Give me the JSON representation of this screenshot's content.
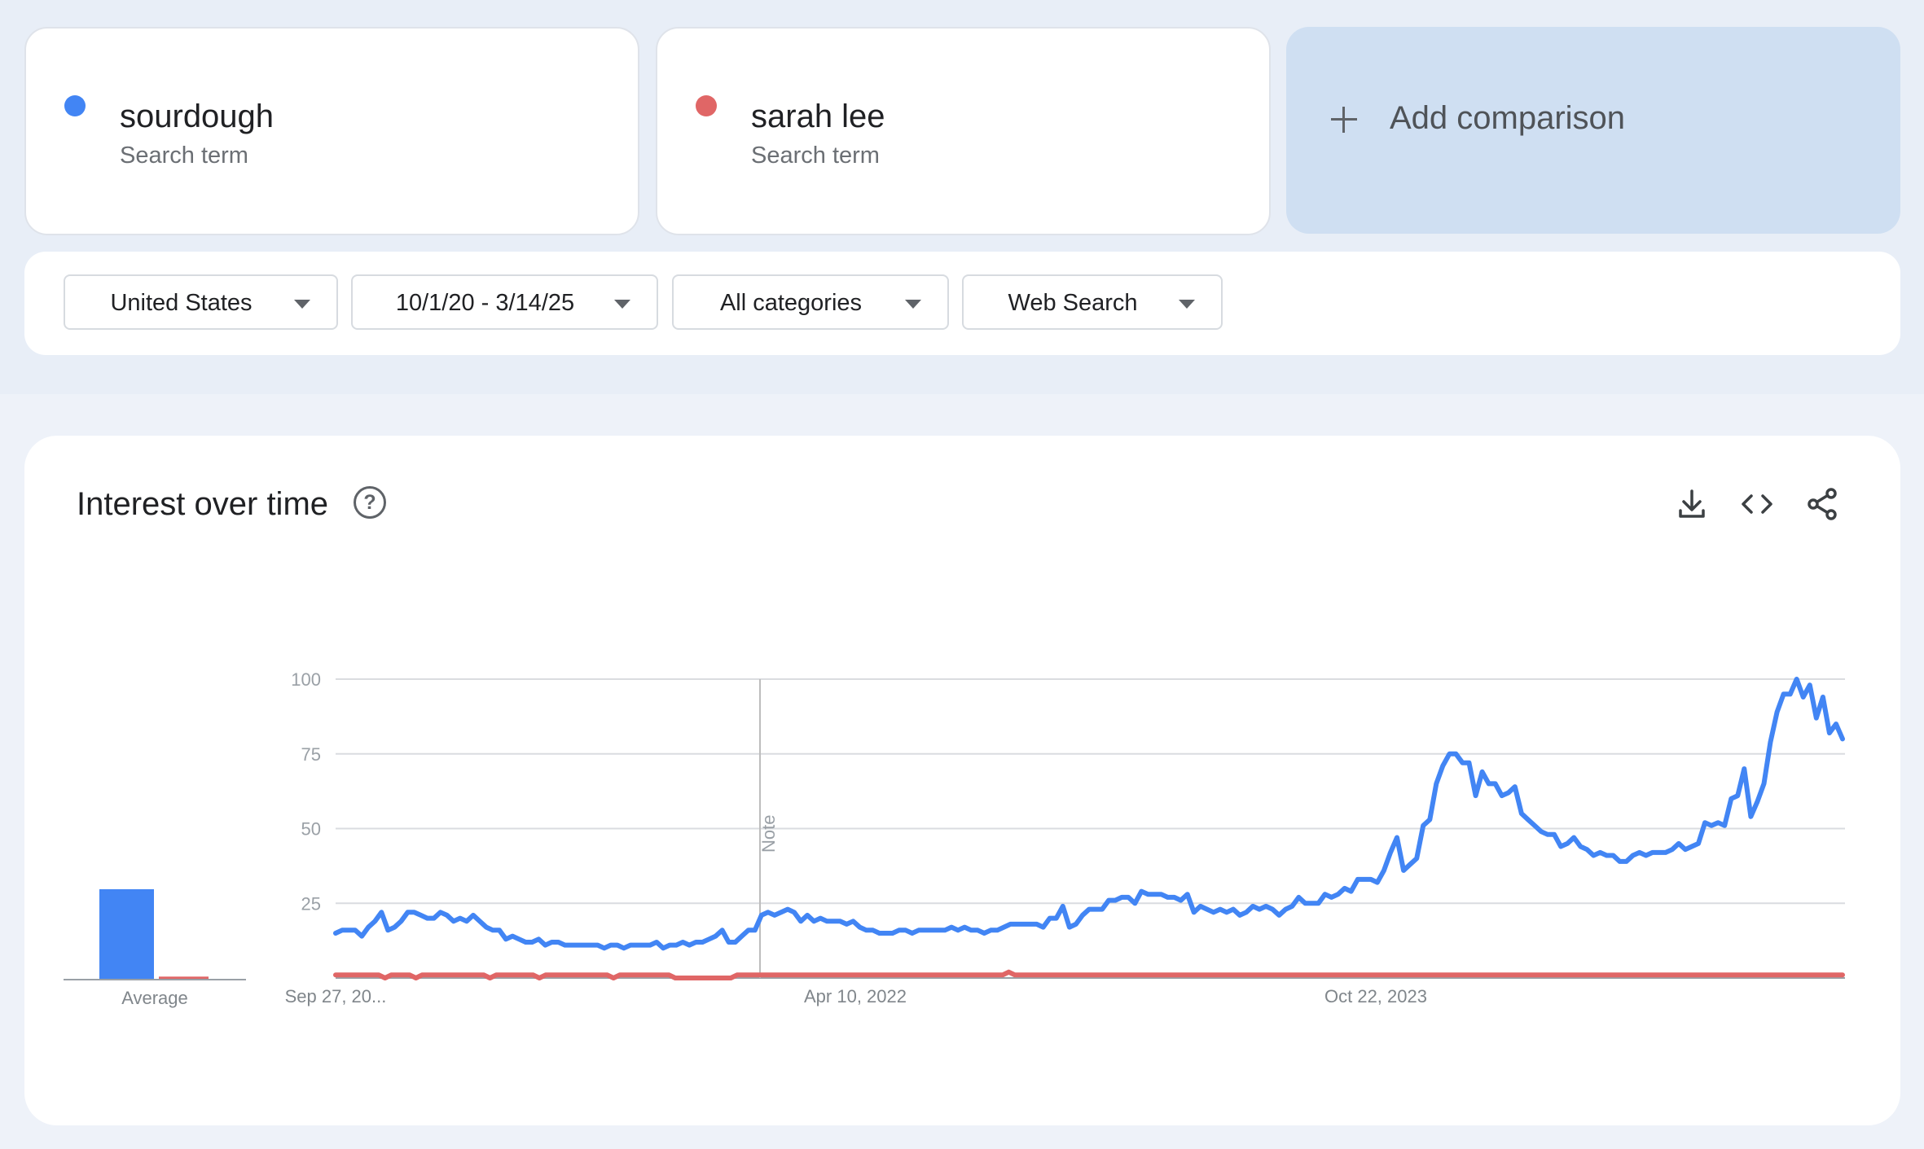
{
  "terms": [
    {
      "name": "sourdough",
      "type": "Search term",
      "color": "#4285f4"
    },
    {
      "name": "sarah lee",
      "type": "Search term",
      "color": "#e06666"
    }
  ],
  "add_comparison": {
    "label": "Add comparison",
    "icon": "plus-icon"
  },
  "filters": {
    "region": "United States",
    "date_range": "10/1/20 - 3/14/25",
    "category": "All categories",
    "search_type": "Web Search"
  },
  "panel": {
    "title": "Interest over time",
    "help_icon": "help-circle-icon",
    "actions": [
      "download-icon",
      "embed-code-icon",
      "share-icon"
    ]
  },
  "chart_data": {
    "type": "line",
    "ylim": [
      0,
      100
    ],
    "y_ticks": [
      "100",
      "75",
      "50",
      "25"
    ],
    "x_labels": [
      "Sep 27, 20...",
      "Apr 10, 2022",
      "Oct 22, 2023"
    ],
    "note_label": "Note",
    "average_label": "Average",
    "averages": [
      {
        "name": "sourdough",
        "value": 30
      },
      {
        "name": "sarah lee",
        "value": 1
      }
    ],
    "grid": true,
    "series": [
      {
        "name": "sourdough",
        "color": "#4285f4",
        "values": [
          15,
          16,
          16,
          16,
          14,
          17,
          19,
          22,
          16,
          17,
          19,
          22,
          22,
          21,
          20,
          20,
          22,
          21,
          19,
          20,
          19,
          21,
          19,
          17,
          16,
          16,
          13,
          14,
          13,
          12,
          12,
          13,
          11,
          12,
          12,
          11,
          11,
          11,
          11,
          11,
          11,
          10,
          11,
          11,
          10,
          11,
          11,
          11,
          11,
          12,
          10,
          11,
          11,
          12,
          11,
          12,
          12,
          13,
          14,
          16,
          12,
          12,
          14,
          16,
          16,
          21,
          22,
          21,
          22,
          23,
          22,
          19,
          21,
          19,
          20,
          19,
          19,
          19,
          18,
          19,
          17,
          16,
          16,
          15,
          15,
          15,
          16,
          16,
          15,
          16,
          16,
          16,
          16,
          16,
          17,
          16,
          17,
          16,
          16,
          15,
          16,
          16,
          17,
          18,
          18,
          18,
          18,
          18,
          17,
          20,
          20,
          24,
          17,
          18,
          21,
          23,
          23,
          23,
          26,
          26,
          27,
          27,
          25,
          29,
          28,
          28,
          28,
          27,
          27,
          26,
          28,
          22,
          24,
          23,
          22,
          23,
          22,
          23,
          21,
          22,
          24,
          23,
          24,
          23,
          21,
          23,
          24,
          27,
          25,
          25,
          25,
          28,
          27,
          28,
          30,
          29,
          33,
          33,
          33,
          32,
          36,
          42,
          47,
          36,
          38,
          40,
          51,
          53,
          65,
          71,
          75,
          75,
          72,
          72,
          61,
          69,
          65,
          65,
          61,
          62,
          64,
          55,
          53,
          51,
          49,
          48,
          48,
          44,
          45,
          47,
          44,
          43,
          41,
          42,
          41,
          41,
          39,
          39,
          41,
          42,
          41,
          42,
          42,
          42,
          43,
          45,
          43,
          44,
          45,
          52,
          51,
          52,
          51,
          60,
          61,
          70,
          54,
          59,
          65,
          79,
          89,
          95,
          95,
          100,
          94,
          98,
          87,
          94,
          82,
          85,
          80
        ]
      },
      {
        "name": "sarah lee",
        "color": "#e06666",
        "values": [
          1,
          1,
          1,
          1,
          1,
          1,
          1,
          1,
          0,
          1,
          1,
          1,
          1,
          0,
          1,
          1,
          1,
          1,
          1,
          1,
          1,
          1,
          1,
          1,
          1,
          0,
          1,
          1,
          1,
          1,
          1,
          1,
          1,
          0,
          1,
          1,
          1,
          1,
          1,
          1,
          1,
          1,
          1,
          1,
          1,
          0,
          1,
          1,
          1,
          1,
          1,
          1,
          1,
          1,
          1,
          0,
          0,
          0,
          0,
          0,
          0,
          0,
          0,
          0,
          0,
          1,
          1,
          1,
          1,
          1,
          1,
          1,
          1,
          1,
          1,
          1,
          1,
          1,
          1,
          1,
          1,
          1,
          1,
          1,
          1,
          1,
          1,
          1,
          1,
          1,
          1,
          1,
          1,
          1,
          1,
          1,
          1,
          1,
          1,
          1,
          1,
          1,
          1,
          1,
          1,
          1,
          1,
          1,
          1,
          2,
          1,
          1,
          1,
          1,
          1,
          1,
          1,
          1,
          1,
          1,
          1,
          1,
          1,
          1,
          1,
          1,
          1,
          1,
          1,
          1,
          1,
          1,
          1,
          1,
          1,
          1,
          1,
          1,
          1,
          1,
          1,
          1,
          1,
          1,
          1,
          1,
          1,
          1,
          1,
          1,
          1,
          1,
          1,
          1,
          1,
          1,
          1,
          1,
          1,
          1,
          1,
          1,
          1,
          1,
          1,
          1,
          1,
          1,
          1,
          1,
          1,
          1,
          1,
          1,
          1,
          1,
          1,
          1,
          1,
          1,
          1,
          1,
          1,
          1,
          1,
          1,
          1,
          1,
          1,
          1,
          1,
          1,
          1,
          1,
          1,
          1,
          1,
          1,
          1,
          1,
          1,
          1,
          1,
          1,
          1,
          1,
          1,
          1,
          1,
          1,
          1,
          1,
          1,
          1,
          1,
          1,
          1,
          1,
          1,
          1,
          1,
          1,
          1,
          1,
          1,
          1,
          1,
          1,
          1,
          1,
          1,
          1,
          1,
          1,
          1,
          1,
          1,
          1,
          1,
          1,
          1,
          1,
          1,
          1,
          1
        ]
      }
    ]
  }
}
